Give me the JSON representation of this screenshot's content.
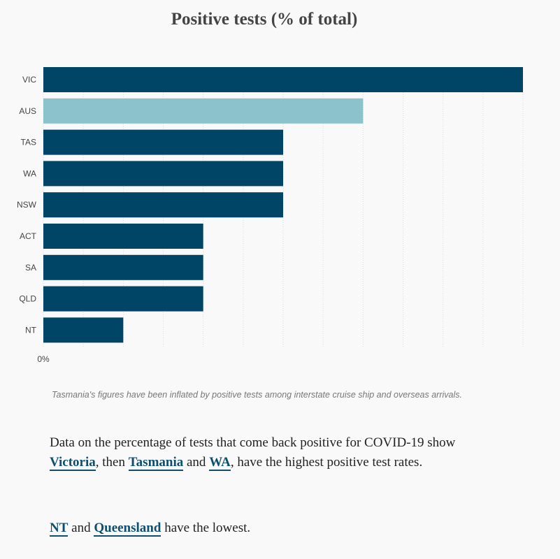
{
  "chart_data": {
    "type": "bar",
    "orientation": "horizontal",
    "title": "Positive tests (% of total)",
    "categories": [
      "VIC",
      "AUS",
      "TAS",
      "WA",
      "NSW",
      "ACT",
      "SA",
      "QLD",
      "NT"
    ],
    "values": [
      0.6,
      0.4,
      0.3,
      0.3,
      0.3,
      0.2,
      0.2,
      0.2,
      0.1
    ],
    "highlight_category": "AUS",
    "x_tick_label": "0%",
    "xlim": [
      0,
      0.6
    ],
    "grid": "vertical dotted",
    "colors": {
      "bar": "#004466",
      "highlight": "#8cc2cc"
    }
  },
  "note": "Tasmania's figures have been inflated by positive tests among interstate cruise ship and overseas arrivals.",
  "paragraph1": {
    "t1": "Data on the percentage of tests that come back positive for COVID-19 show ",
    "link1": "Victoria",
    "t2": ", then ",
    "link2": "Tasmania",
    "t3": " and ",
    "link3": "WA",
    "t4": ", have the highest positive test rates."
  },
  "paragraph2": {
    "link1": "NT",
    "t1": " and ",
    "link2": "Queensland",
    "t2": " have the lowest."
  }
}
